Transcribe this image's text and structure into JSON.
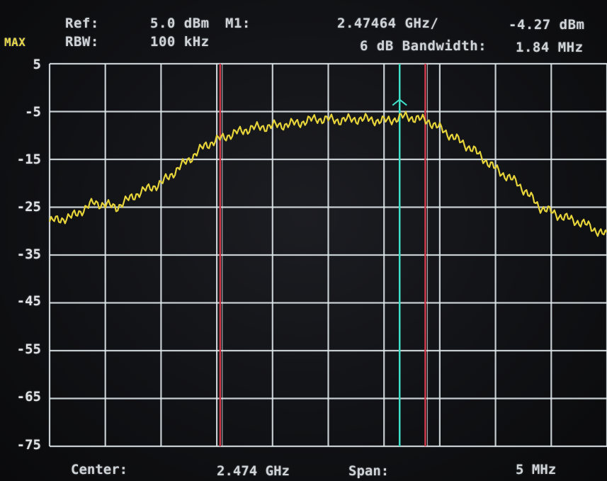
{
  "header": {
    "mode": "MAX",
    "ref_label": "Ref:",
    "ref_value": "5.0 dBm",
    "rbw_label": "RBW:",
    "rbw_value": "100 kHz",
    "marker_label": "M1:",
    "marker_freq": "2.47464 GHz/",
    "marker_level": "-4.27 dBm",
    "bandwidth_label": "6 dB Bandwidth:",
    "bandwidth_value": "1.84 MHz"
  },
  "footer": {
    "center_label": "Center:",
    "center_value": "2.474 GHz",
    "span_label": "Span:",
    "span_value": "5 MHz"
  },
  "colors": {
    "trace": "#e6d43a",
    "grid": "#dfe8ec",
    "marker": "#3fe0c8",
    "bandwidth_marker": "#d23a4a",
    "background": "#101114"
  },
  "chart_data": {
    "type": "line",
    "x_unit": "GHz",
    "x_center": 2.474,
    "x_span": 0.005,
    "xlim": [
      2.4715,
      2.4765
    ],
    "ylim": [
      -75,
      5
    ],
    "yticks": [
      "5",
      "-5",
      "-15",
      "-25",
      "-35",
      "-45",
      "-55",
      "-65",
      "-75"
    ],
    "grid": true,
    "x_divisions": 10,
    "series": [
      {
        "x": [
          2.4715,
          2.4717,
          2.4719,
          2.4721,
          2.4723,
          2.4725,
          2.4727,
          2.4729,
          2.4731,
          2.4733,
          2.4735,
          2.4737,
          2.4739,
          2.4741,
          2.4743,
          2.4745,
          2.4747,
          2.4749,
          2.4751,
          2.4753,
          2.4755,
          2.4757,
          2.4759,
          2.4761,
          2.4763,
          2.4765
        ],
        "y": [
          -28,
          -27,
          -24,
          -25,
          -22,
          -20,
          -16,
          -12,
          -10,
          -8.5,
          -8,
          -7.5,
          -6.5,
          -6.8,
          -6.5,
          -7,
          -6,
          -7,
          -10,
          -13,
          -17,
          -20,
          -25,
          -27,
          -28.5,
          -31
        ]
      }
    ],
    "markers": [
      {
        "name": "M1",
        "x": 2.47464,
        "y": -4.27,
        "kind": "peak"
      },
      {
        "x": 2.47303,
        "kind": "bandwidth-left"
      },
      {
        "x": 2.47487,
        "kind": "bandwidth-right"
      }
    ]
  }
}
